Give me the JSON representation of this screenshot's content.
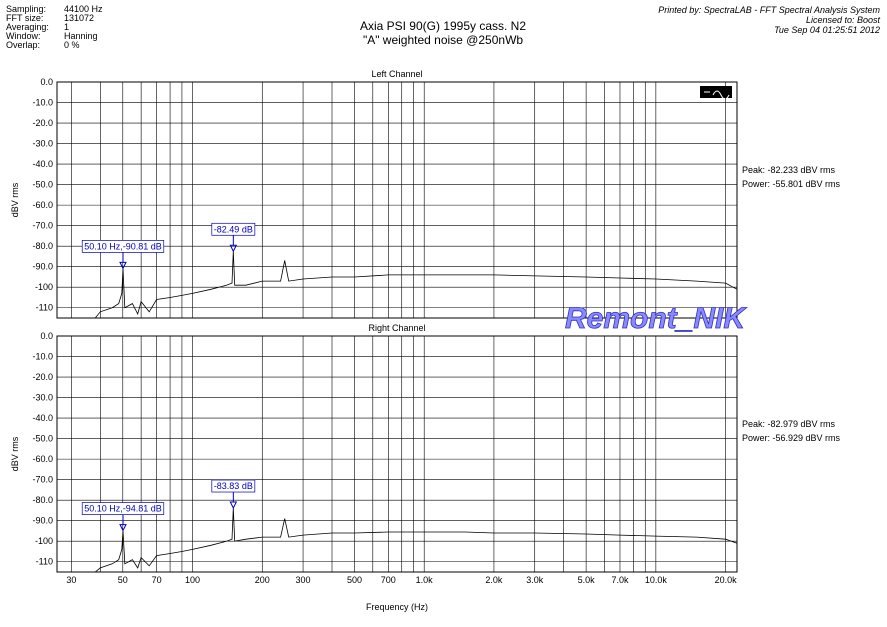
{
  "header": {
    "info_labels": [
      "Sampling:",
      "FFT size:",
      "Averaging:",
      "Window:",
      "Overlap:"
    ],
    "info_values": [
      "44100 Hz",
      "131072",
      "1",
      "Hanning",
      "0 %"
    ],
    "title": "Axia PSI 90(G) 1995y cass. N2",
    "subtitle": "\"A\" weighted noise @250nWb",
    "printed_by": "Printed by: SpectraLAB - FFT Spectral Analysis System",
    "licensed_to": "Licensed to: Boost",
    "date": "Tue Sep 04 01:25:51 2012",
    "watermark": "Remont_NIK"
  },
  "x_axis": {
    "label": "Frequency (Hz)",
    "log": true,
    "xlim": [
      26,
      22400
    ],
    "xticks": [
      30,
      50,
      70,
      100,
      200,
      300,
      500,
      700,
      {
        "value": 1000,
        "label": "1.0k"
      },
      {
        "value": 2000,
        "label": "2.0k"
      },
      {
        "value": 3000,
        "label": "3.0k"
      },
      {
        "value": 5000,
        "label": "5.0k"
      },
      {
        "value": 7000,
        "label": "7.0k"
      },
      {
        "value": 10000,
        "label": "10.0k"
      },
      {
        "value": 20000,
        "label": "20.0k"
      }
    ],
    "xminorticks": [
      40,
      60,
      80,
      90,
      400,
      600,
      800,
      900,
      4000,
      6000,
      8000,
      9000
    ]
  },
  "chart_data": [
    {
      "type": "line",
      "title": "Left Channel",
      "ylabel": "dBV rms",
      "color": "#000000",
      "grid": true,
      "ylim": [
        -115,
        0
      ],
      "yticks": [
        {
          "value": 0,
          "label": "0.0"
        },
        {
          "value": -10,
          "label": "-10.0"
        },
        {
          "value": -20,
          "label": "-20.0"
        },
        {
          "value": -30,
          "label": "-30.0"
        },
        {
          "value": -40,
          "label": "-40.0"
        },
        {
          "value": -50,
          "label": "-50.0"
        },
        {
          "value": -60,
          "label": "-60.0"
        },
        {
          "value": -70,
          "label": "-70.0"
        },
        {
          "value": -80,
          "label": "-80.0"
        },
        {
          "value": -90,
          "label": "-90.0"
        },
        -100,
        -110
      ],
      "x": [
        26,
        38,
        40,
        45,
        48,
        49.5,
        50.1,
        51,
        55,
        58,
        60,
        65,
        70,
        80,
        90,
        100,
        120,
        140,
        148,
        150,
        152,
        170,
        200,
        240,
        250,
        260,
        300,
        400,
        500,
        700,
        1000,
        1500,
        2000,
        3000,
        5000,
        7000,
        10000,
        15000,
        20000,
        22400
      ],
      "values": [
        -115,
        -115,
        -112,
        -110,
        -108,
        -103,
        -90.81,
        -110,
        -108,
        -113,
        -107,
        -112,
        -106,
        -105,
        -104,
        -103,
        -101,
        -99,
        -98,
        -82.49,
        -99,
        -99,
        -97,
        -97,
        -87,
        -97,
        -96,
        -95,
        -95,
        -94,
        -94,
        -94,
        -94,
        -94.5,
        -95,
        -95.5,
        -96,
        -97,
        -98,
        -101
      ],
      "markers": [
        {
          "x": 50.1,
          "y": -90.81,
          "label": "50.10 Hz,-90.81 dB"
        },
        {
          "x": 150,
          "y": -82.49,
          "label": "-82.49 dB"
        }
      ],
      "annotations": [
        "Peak: -82.233 dBV rms",
        "Power: -55.801 dBV rms"
      ]
    },
    {
      "type": "line",
      "title": "Right Channel",
      "ylabel": "dBV rms",
      "color": "#000000",
      "grid": true,
      "ylim": [
        -115,
        0
      ],
      "yticks": [
        {
          "value": 0,
          "label": "0.0"
        },
        {
          "value": -10,
          "label": "-10.0"
        },
        {
          "value": -20,
          "label": "-20.0"
        },
        {
          "value": -30,
          "label": "-30.0"
        },
        {
          "value": -40,
          "label": "-40.0"
        },
        {
          "value": -50,
          "label": "-50.0"
        },
        {
          "value": -60,
          "label": "-60.0"
        },
        {
          "value": -70,
          "label": "-70.0"
        },
        {
          "value": -80,
          "label": "-80.0"
        },
        {
          "value": -90,
          "label": "-90.0"
        },
        -100,
        -110
      ],
      "x": [
        26,
        38,
        40,
        45,
        48,
        49.5,
        50.1,
        51,
        55,
        58,
        60,
        65,
        70,
        80,
        90,
        100,
        120,
        140,
        148,
        150,
        152,
        170,
        200,
        240,
        250,
        260,
        300,
        400,
        500,
        700,
        1000,
        1500,
        2000,
        3000,
        5000,
        7000,
        10000,
        15000,
        20000,
        22400
      ],
      "values": [
        -115,
        -115,
        -113,
        -111,
        -109,
        -104,
        -94.81,
        -111,
        -109,
        -113,
        -108,
        -112,
        -107,
        -106,
        -105,
        -104,
        -102,
        -100,
        -99,
        -83.83,
        -100,
        -99,
        -98,
        -98,
        -89,
        -98,
        -97,
        -96,
        -96,
        -95.5,
        -95.5,
        -95.5,
        -96,
        -96,
        -96.5,
        -97,
        -97.5,
        -98,
        -99,
        -101
      ],
      "markers": [
        {
          "x": 50.1,
          "y": -94.81,
          "label": "50.10 Hz,-94.81 dB"
        },
        {
          "x": 150,
          "y": -83.83,
          "label": "-83.83 dB"
        }
      ],
      "annotations": [
        "Peak: -82.979 dBV rms",
        "Power: -56.929 dBV rms"
      ]
    }
  ]
}
